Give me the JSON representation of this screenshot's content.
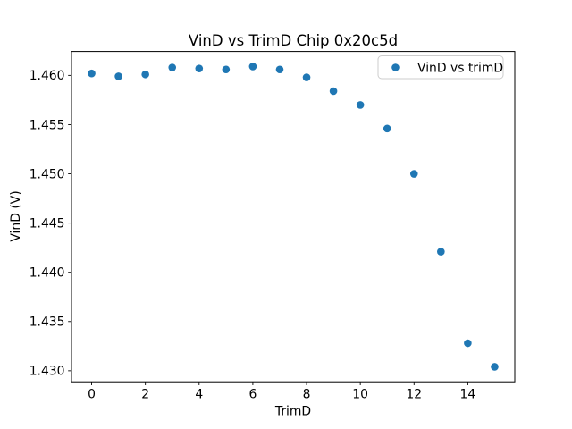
{
  "chart_data": {
    "type": "scatter",
    "title": "VinD vs TrimD Chip 0x20c5d",
    "xlabel": "TrimD",
    "ylabel": "VinD (V)",
    "legend": {
      "position": "upper right",
      "entries": [
        {
          "label": "VinD vs trimD",
          "marker": "circle-icon",
          "color": "#1f77b4"
        }
      ]
    },
    "marker_color": "#1f77b4",
    "x": [
      0,
      1,
      2,
      3,
      4,
      5,
      6,
      7,
      8,
      9,
      10,
      11,
      12,
      13,
      14,
      15
    ],
    "y": [
      1.4602,
      1.4599,
      1.4601,
      1.4608,
      1.4607,
      1.4606,
      1.4609,
      1.4606,
      1.4598,
      1.4584,
      1.457,
      1.4546,
      1.45,
      1.4421,
      1.4328,
      1.4304
    ],
    "xlim": [
      -0.75,
      15.75
    ],
    "ylim": [
      1.42888,
      1.46243
    ],
    "xticks": [
      0,
      2,
      4,
      6,
      8,
      10,
      12,
      14
    ],
    "xtick_labels": [
      "0",
      "2",
      "4",
      "6",
      "8",
      "10",
      "12",
      "14"
    ],
    "yticks": [
      1.43,
      1.435,
      1.44,
      1.445,
      1.45,
      1.455,
      1.46
    ],
    "ytick_labels": [
      "1.430",
      "1.435",
      "1.440",
      "1.445",
      "1.450",
      "1.455",
      "1.460"
    ],
    "grid": false,
    "background_color": "#ffffff",
    "spine_color": "#000000"
  }
}
